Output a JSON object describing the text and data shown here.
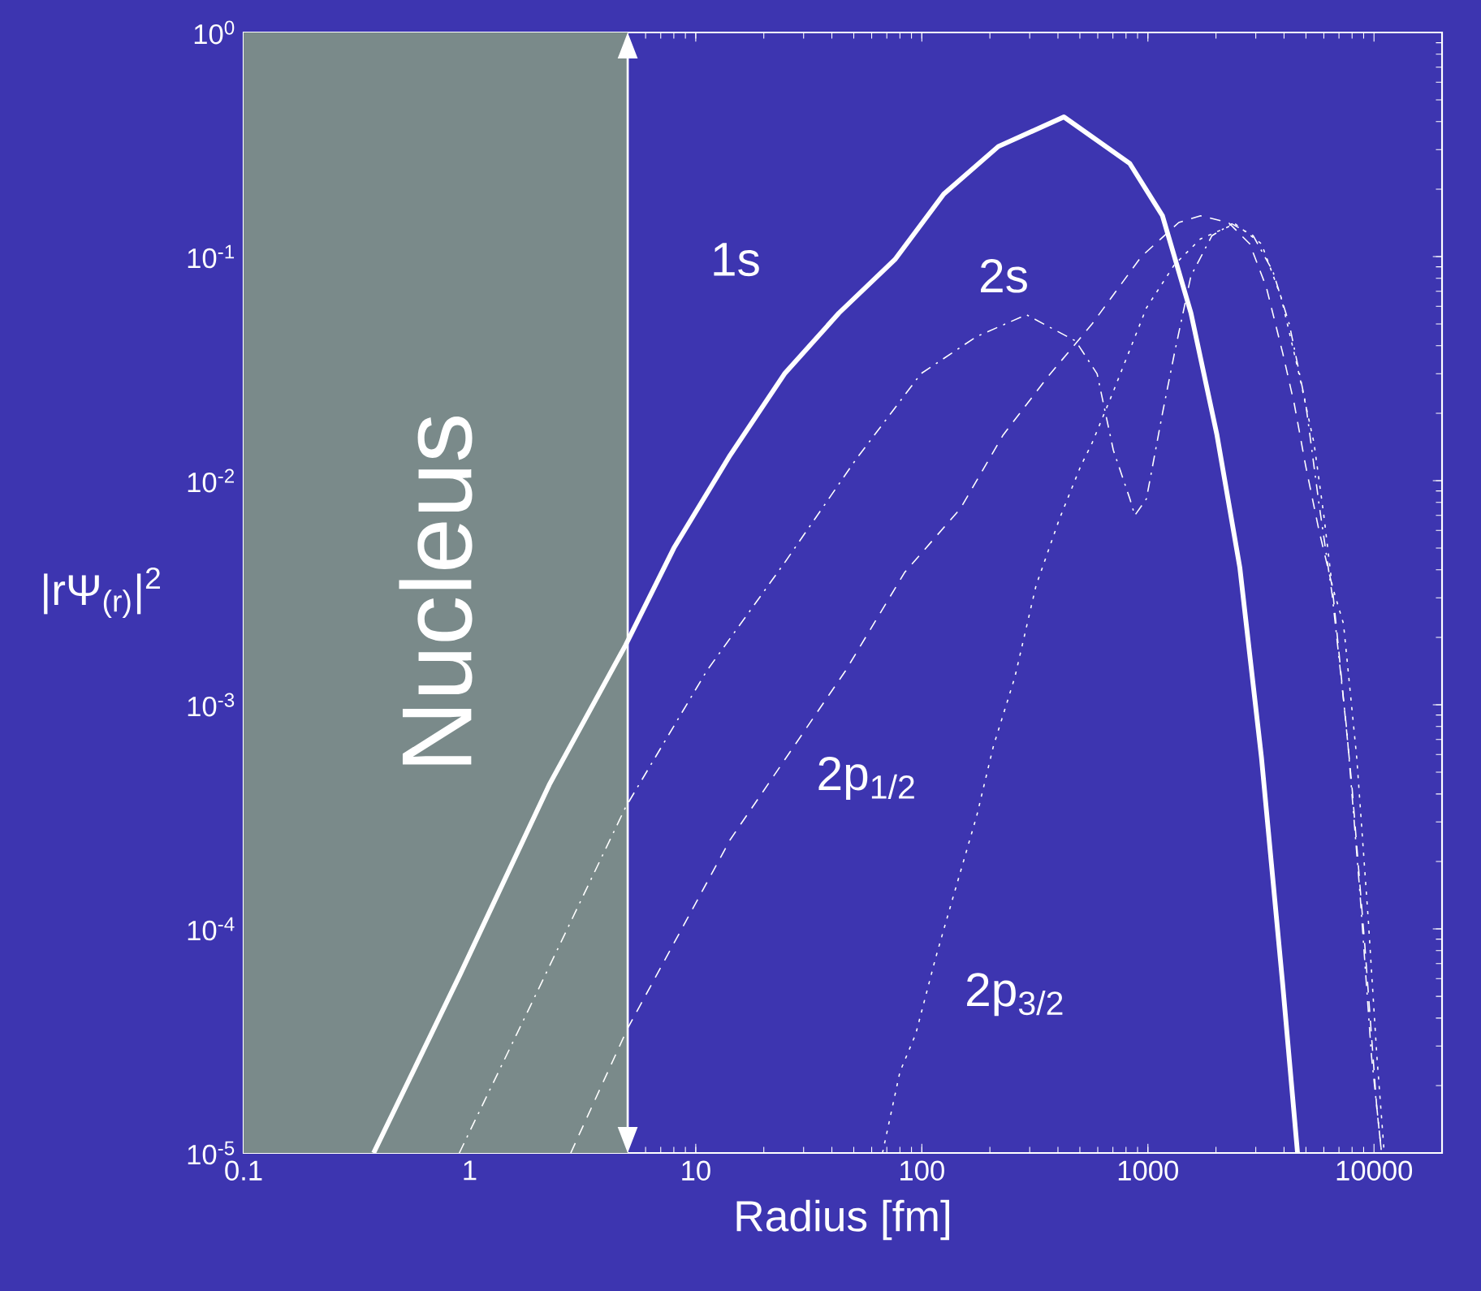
{
  "chart_data": {
    "type": "line",
    "xlabel": "Radius [fm]",
    "ylabel": "|rΨ$_{(r)}$|$^{2}$",
    "log": "xy",
    "xlim": [
      0.1,
      20000
    ],
    "ylim": [
      1e-05,
      1
    ],
    "xticks": [
      0.1,
      1,
      10,
      100,
      1000,
      10000
    ],
    "yticks": [
      {
        "value": 1e-05,
        "label": "10$^{-5}$"
      },
      {
        "value": 0.0001,
        "label": "10$^{-4}$"
      },
      {
        "value": 0.001,
        "label": "10$^{-3}$"
      },
      {
        "value": 0.01,
        "label": "10$^{-2}$"
      },
      {
        "value": 0.1,
        "label": "10$^{-1}$"
      },
      {
        "value": 1,
        "label": "10$^{0}$"
      }
    ],
    "grid": false,
    "marker": "none",
    "bands": [
      {
        "axis": "x",
        "from": 0.1,
        "to": 5,
        "label": "Nucleus",
        "color": "#7a8a8a"
      }
    ],
    "ref_lines": [
      {
        "axis": "x",
        "value": 5,
        "color": "#ffffff"
      }
    ],
    "series": [
      {
        "name": "1s",
        "color": "#ffffff",
        "line_style": "solid",
        "x": [
          0.376,
          0.91,
          2.25,
          4.9,
          8.0,
          14.2,
          24.7,
          43,
          76,
          125,
          218,
          425,
          832,
          1160,
          1550,
          2020,
          2550,
          3180,
          3950,
          4590
        ],
        "values": [
          1e-05,
          6.3e-05,
          0.00044,
          0.00185,
          0.005,
          0.013,
          0.03,
          0.056,
          0.097,
          0.19,
          0.31,
          0.42,
          0.26,
          0.152,
          0.056,
          0.016,
          0.0041,
          0.00058,
          5.6e-05,
          1e-05
        ]
      },
      {
        "name": "2s",
        "color": "#ffffff",
        "line_style": "dashdotted",
        "x": [
          0.9,
          2.0,
          4.9,
          11.2,
          24.7,
          51,
          99,
          175,
          290,
          479,
          596,
          703,
          832,
          875,
          985,
          1160,
          1310,
          1550,
          1920,
          2350,
          2920,
          3570,
          4220,
          4990,
          5710,
          6530,
          7580,
          8670,
          9750,
          10800
        ],
        "values": [
          1e-05,
          5.3e-05,
          0.00035,
          0.00142,
          0.0043,
          0.0124,
          0.03,
          0.044,
          0.055,
          0.042,
          0.03,
          0.0137,
          0.0083,
          0.007,
          0.0083,
          0.02,
          0.037,
          0.082,
          0.124,
          0.14,
          0.124,
          0.086,
          0.05,
          0.022,
          0.0079,
          0.0031,
          0.00077,
          0.000144,
          2.7e-05,
          1e-05
        ]
      },
      {
        "name": "2p$_{1/2}$",
        "color": "#ffffff",
        "line_style": "dashed",
        "x": [
          2.8,
          5.0,
          14.2,
          46,
          84,
          148,
          229,
          360,
          566,
          935,
          1370,
          1710,
          2270,
          2820,
          3340,
          3950,
          4440,
          4990,
          5710,
          6530,
          6980,
          7980,
          9120,
          10300,
          10800
        ],
        "values": [
          1e-05,
          3.6e-05,
          0.00025,
          0.00142,
          0.0039,
          0.0075,
          0.016,
          0.029,
          0.05,
          0.1,
          0.142,
          0.152,
          0.142,
          0.114,
          0.073,
          0.037,
          0.022,
          0.0116,
          0.006,
          0.0034,
          0.00176,
          0.00044,
          8.3e-05,
          1.57e-05,
          1e-05
        ]
      },
      {
        "name": "2p$_{3/2}$",
        "color": "#ffffff",
        "line_style": "dotted",
        "x": [
          67,
          80,
          94,
          115,
          139,
          175,
          207,
          258,
          320,
          405,
          504,
          566,
          703,
          985,
          1310,
          1710,
          2430,
          3180,
          3880,
          4590,
          5430,
          6000,
          6530,
          7330,
          8390,
          9440,
          10300,
          11100
        ],
        "values": [
          1e-05,
          2.3e-05,
          3.4e-05,
          7.4e-05,
          0.000144,
          0.00032,
          0.00065,
          0.00133,
          0.0034,
          0.0067,
          0.0116,
          0.0147,
          0.025,
          0.059,
          0.092,
          0.12,
          0.14,
          0.114,
          0.066,
          0.032,
          0.0147,
          0.007,
          0.0034,
          0.0023,
          0.00058,
          0.000109,
          2.7e-05,
          1e-05
        ]
      }
    ]
  }
}
